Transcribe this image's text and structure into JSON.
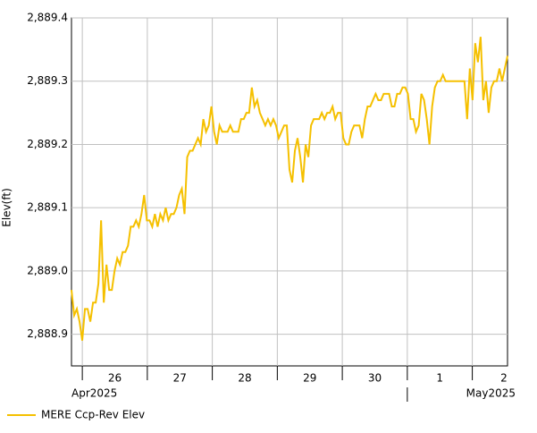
{
  "chart_data": {
    "type": "line",
    "y_label": "Elev(ft)",
    "xlim": [
      "2025-04-25T20:00",
      "2025-05-02T13:00"
    ],
    "xticks": [
      {
        "value": "2025-04-26T00:00",
        "label": "26"
      },
      {
        "value": "2025-04-27T00:00",
        "label": "27"
      },
      {
        "value": "2025-04-28T00:00",
        "label": "28"
      },
      {
        "value": "2025-04-29T00:00",
        "label": "29"
      },
      {
        "value": "2025-04-30T00:00",
        "label": "30"
      },
      {
        "value": "2025-05-01T00:00",
        "label": "1"
      },
      {
        "value": "2025-05-02T00:00",
        "label": "2"
      }
    ],
    "x_major_ticks": [
      {
        "value": "2025-04-01T00:00",
        "label": "Apr2025"
      },
      {
        "value": "2025-05-01T00:00",
        "label": "May2025"
      }
    ],
    "ylim": [
      2888.85,
      2889.4
    ],
    "yticks": [
      {
        "value": 2888.9,
        "label": "2,888.9"
      },
      {
        "value": 2889.0,
        "label": "2,889.0"
      },
      {
        "value": 2889.1,
        "label": "2,889.1"
      },
      {
        "value": 2889.2,
        "label": "2,889.2"
      },
      {
        "value": 2889.3,
        "label": "2,889.3"
      },
      {
        "value": 2889.4,
        "label": "2,889.4"
      }
    ],
    "grid": true,
    "series": [
      {
        "name": "MERE Ccp-Rev Elev",
        "color": "#f5c000",
        "values": [
          2888.97,
          2888.93,
          2888.94,
          2888.92,
          2888.89,
          2888.94,
          2888.94,
          2888.92,
          2888.95,
          2888.95,
          2888.98,
          2889.08,
          2888.95,
          2889.01,
          2888.97,
          2888.97,
          2889.0,
          2889.02,
          2889.01,
          2889.03,
          2889.03,
          2889.04,
          2889.07,
          2889.07,
          2889.08,
          2889.07,
          2889.09,
          2889.12,
          2889.08,
          2889.08,
          2889.07,
          2889.09,
          2889.07,
          2889.09,
          2889.08,
          2889.1,
          2889.08,
          2889.09,
          2889.09,
          2889.1,
          2889.12,
          2889.13,
          2889.09,
          2889.18,
          2889.19,
          2889.19,
          2889.2,
          2889.21,
          2889.2,
          2889.24,
          2889.22,
          2889.23,
          2889.26,
          2889.22,
          2889.2,
          2889.23,
          2889.22,
          2889.22,
          2889.22,
          2889.23,
          2889.22,
          2889.22,
          2889.22,
          2889.24,
          2889.24,
          2889.25,
          2889.25,
          2889.29,
          2889.26,
          2889.27,
          2889.25,
          2889.24,
          2889.23,
          2889.24,
          2889.23,
          2889.24,
          2889.23,
          2889.21,
          2889.22,
          2889.23,
          2889.23,
          2889.16,
          2889.14,
          2889.19,
          2889.21,
          2889.18,
          2889.14,
          2889.2,
          2889.18,
          2889.23,
          2889.24,
          2889.24,
          2889.24,
          2889.25,
          2889.24,
          2889.25,
          2889.25,
          2889.26,
          2889.24,
          2889.25,
          2889.25,
          2889.21,
          2889.2,
          2889.2,
          2889.22,
          2889.23,
          2889.23,
          2889.23,
          2889.21,
          2889.24,
          2889.26,
          2889.26,
          2889.27,
          2889.28,
          2889.27,
          2889.27,
          2889.28,
          2889.28,
          2889.28,
          2889.26,
          2889.26,
          2889.28,
          2889.28,
          2889.29,
          2889.29,
          2889.28,
          2889.24,
          2889.24,
          2889.22,
          2889.23,
          2889.28,
          2889.27,
          2889.24,
          2889.2,
          2889.26,
          2889.29,
          2889.3,
          2889.3,
          2889.31,
          2889.3,
          2889.3,
          2889.3,
          2889.3,
          2889.3,
          2889.3,
          2889.3,
          2889.3,
          2889.24,
          2889.32,
          2889.27,
          2889.36,
          2889.33,
          2889.37,
          2889.27,
          2889.3,
          2889.25,
          2889.29,
          2889.3,
          2889.3,
          2889.32,
          2889.3,
          2889.32,
          2889.34
        ]
      }
    ]
  }
}
